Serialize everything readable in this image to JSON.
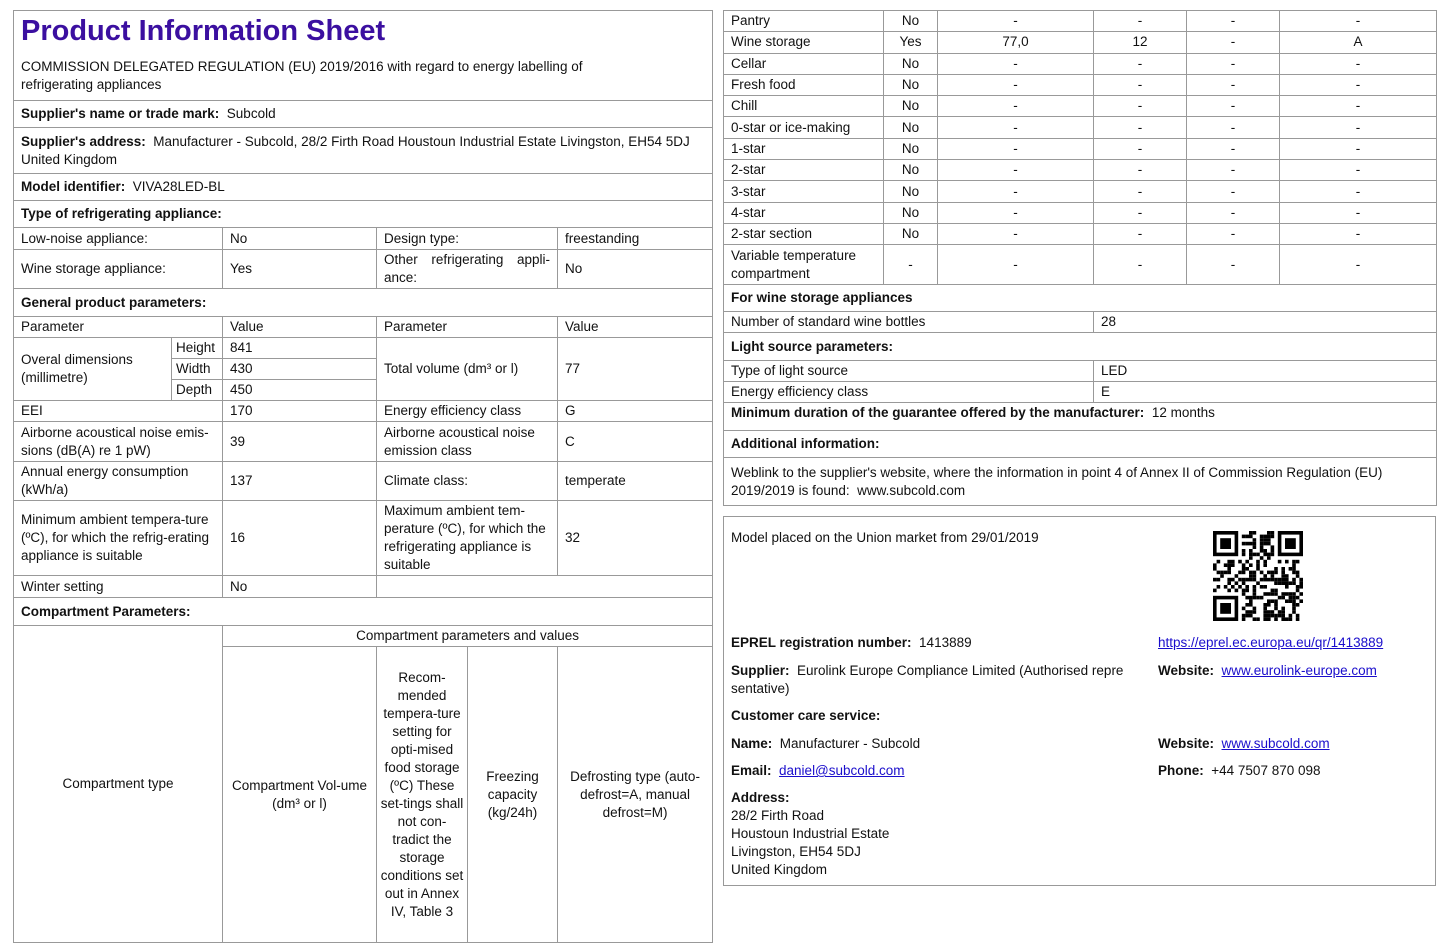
{
  "title": "Product Information Sheet",
  "regulation": "COMMISSION DELEGATED REGULATION (EU) 2019/2016 with regard to energy labelling of refrigerating appliances",
  "supplier_name": {
    "label": "Supplier's name or trade mark:",
    "value": "Subcold"
  },
  "supplier_address": {
    "label": "Supplier's address:",
    "value": "Manufacturer - Subcold, 28/2 Firth Road Houstoun Industrial Estate Livingston, EH54 5DJ United Kingdom"
  },
  "model": {
    "label": "Model identifier:",
    "value": "VIVA28LED-BL"
  },
  "type_heading": "Type of refrigerating appliance:",
  "low_noise": {
    "label": "Low-noise appliance:",
    "value": "No"
  },
  "design_type": {
    "label": "Design type:",
    "value": "freestanding"
  },
  "wine_storage": {
    "label": "Wine storage appliance:",
    "value": "Yes"
  },
  "other": {
    "label": "Other refrigerating appli-ance:",
    "value": "No"
  },
  "general_heading": "General product parameters:",
  "param_header": {
    "parameter": "Parameter",
    "value": "Value"
  },
  "dimensions": {
    "label": "Overal dimensions (millimetre)",
    "height_label": "Height",
    "height": "841",
    "width_label": "Width",
    "width": "430",
    "depth_label": "Depth",
    "depth": "450"
  },
  "total_volume": {
    "label": "Total volume (dm³ or l)",
    "value": "77"
  },
  "eei": {
    "label": "EEI",
    "value": "170"
  },
  "energy_class": {
    "label": "Energy efficiency class",
    "value": "G"
  },
  "noise": {
    "label": "Airborne acoustical noise emis-sions (dB(A) re 1 pW)",
    "value": "39"
  },
  "noise_class": {
    "label": "Airborne acoustical noise emission class",
    "value": "C"
  },
  "annual_energy": {
    "label": "Annual energy consumption (kWh/a)",
    "value": "137"
  },
  "climate": {
    "label": "Climate class:",
    "value": "temperate"
  },
  "min_ambient": {
    "label": "Minimum ambient tempera-ture (ºC), for which the refrig-erating appliance is suitable",
    "value": "16"
  },
  "max_ambient": {
    "label": "Maximum ambient tem-perature (ºC), for which the refrigerating appliance is suitable",
    "value": "32"
  },
  "winter": {
    "label": "Winter setting",
    "value": "No"
  },
  "compartment_heading": "Compartment Parameters:",
  "comp_header": {
    "type": "Compartment type",
    "group": "Compartment parameters and values",
    "volume": "Compartment Vol-ume (dm³ or l)",
    "temp": "Recom-mended tempera-ture setting for opti-mised food storage (ºC) These set-tings shall not con-tradict the storage conditions set out in Annex IV, Table 3",
    "freezing": "Freezing capacity (kg/24h)",
    "defrost": "Defrosting type (auto-defrost=A, manual defrost=M)"
  },
  "compartments": [
    [
      "Pantry",
      "No",
      "-",
      "-",
      "-",
      "-"
    ],
    [
      "Wine storage",
      "Yes",
      "77,0",
      "12",
      "-",
      "A"
    ],
    [
      "Cellar",
      "No",
      "-",
      "-",
      "-",
      "-"
    ],
    [
      "Fresh food",
      "No",
      "-",
      "-",
      "-",
      "-"
    ],
    [
      "Chill",
      "No",
      "-",
      "-",
      "-",
      "-"
    ],
    [
      "0-star or ice-making",
      "No",
      "-",
      "-",
      "-",
      "-"
    ],
    [
      "1-star",
      "No",
      "-",
      "-",
      "-",
      "-"
    ],
    [
      "2-star",
      "No",
      "-",
      "-",
      "-",
      "-"
    ],
    [
      "3-star",
      "No",
      "-",
      "-",
      "-",
      "-"
    ],
    [
      "4-star",
      "No",
      "-",
      "-",
      "-",
      "-"
    ],
    [
      "2-star section",
      "No",
      "-",
      "-",
      "-",
      "-"
    ],
    [
      "Variable temperature compartment",
      "-",
      "-",
      "-",
      "-",
      "-"
    ]
  ],
  "wine_heading": "For wine storage appliances",
  "bottles": {
    "label": "Number of standard wine bottles",
    "value": "28"
  },
  "light_heading": "Light source parameters:",
  "light_type": {
    "label": "Type of light source",
    "value": "LED"
  },
  "light_class": {
    "label": "Energy efficiency class",
    "value": "E"
  },
  "guarantee": {
    "label": "Minimum duration of the guarantee offered by the manufacturer:",
    "value": "12 months"
  },
  "additional_heading": "Additional information:",
  "weblink": {
    "text": "Weblink to the supplier's website, where the information in point 4 of Annex II of Commission Regulation (EU) 2019/2019 is found:",
    "value": "www.subcold.com"
  },
  "panel": {
    "market": "Model placed on the Union market from 29/01/2019",
    "eprel_label": "EPREL registration number:",
    "eprel": "1413889",
    "eprel_link": "https://eprel.ec.europa.eu/qr/1413889",
    "supplier_label": "Supplier:",
    "supplier": "Eurolink Europe Compliance Limited (Authorised repre sentative)",
    "website_label": "Website:",
    "supplier_site": "www.eurolink-europe.com",
    "care_heading": "Customer care service:",
    "name_label": "Name:",
    "name": "Manufacturer - Subcold",
    "care_site": "www.subcold.com",
    "email_label": "Email:",
    "email": "daniel@subcold.com",
    "phone_label": "Phone:",
    "phone": "+44 7507 870 098",
    "address_label": "Address:",
    "address": [
      "28/2 Firth Road",
      "Houstoun Industrial Estate",
      "Livingston, EH54 5DJ",
      "United Kingdom"
    ]
  },
  "colors": {
    "title": "#3b0fa0",
    "link": "#1a0dcc",
    "border": "#999999"
  }
}
